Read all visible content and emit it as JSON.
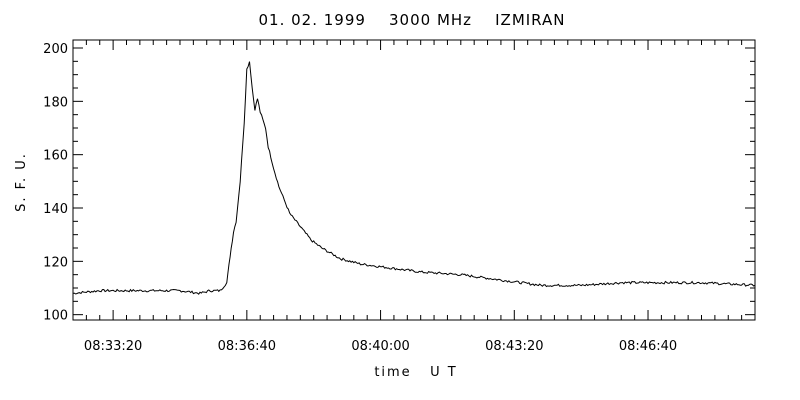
{
  "chart_data": {
    "type": "line",
    "title": "01. 02. 1999    3000 MHz    IZMIRAN",
    "xlabel": "time   U T",
    "ylabel": "S. F. U.",
    "x_tick_labels": [
      "08:33:20",
      "08:36:40",
      "08:40:00",
      "08:43:20",
      "08:46:40"
    ],
    "y_tick_labels": [
      "100",
      "120",
      "140",
      "160",
      "180",
      "200"
    ],
    "y_ticks": [
      100,
      120,
      140,
      160,
      180,
      200
    ],
    "x_ticks": [
      "08:33:20",
      "08:36:40",
      "08:40:00",
      "08:43:20",
      "08:46:40"
    ],
    "xlim": [
      "08:32:20",
      "08:49:20"
    ],
    "ylim": [
      98,
      203
    ],
    "grid": false,
    "series": [
      {
        "x": [
          "08:32:20",
          "08:33:00",
          "08:34:00",
          "08:35:00",
          "08:35:30",
          "08:35:45",
          "08:36:00",
          "08:36:10",
          "08:36:15",
          "08:36:20",
          "08:36:24",
          "08:36:30",
          "08:36:36",
          "08:36:40",
          "08:36:44",
          "08:36:48",
          "08:36:52",
          "08:36:56",
          "08:37:00",
          "08:37:04",
          "08:37:08",
          "08:37:12",
          "08:37:20",
          "08:37:28",
          "08:37:36",
          "08:37:44",
          "08:38:00",
          "08:38:16",
          "08:38:32",
          "08:39:00",
          "08:39:30",
          "08:40:00",
          "08:41:00",
          "08:42:00",
          "08:43:00",
          "08:44:00",
          "08:45:00",
          "08:46:00",
          "08:47:00",
          "08:48:00",
          "08:49:20"
        ],
        "y": [
          108,
          109,
          109,
          109,
          108,
          109,
          109,
          112,
          122,
          131,
          135,
          150,
          172,
          192,
          195,
          185,
          177,
          181,
          176,
          173,
          170,
          163,
          155,
          148,
          143,
          138,
          133,
          128,
          125,
          121,
          119,
          118,
          116,
          115,
          113,
          111,
          111,
          112,
          112,
          112,
          111
        ]
      }
    ]
  }
}
